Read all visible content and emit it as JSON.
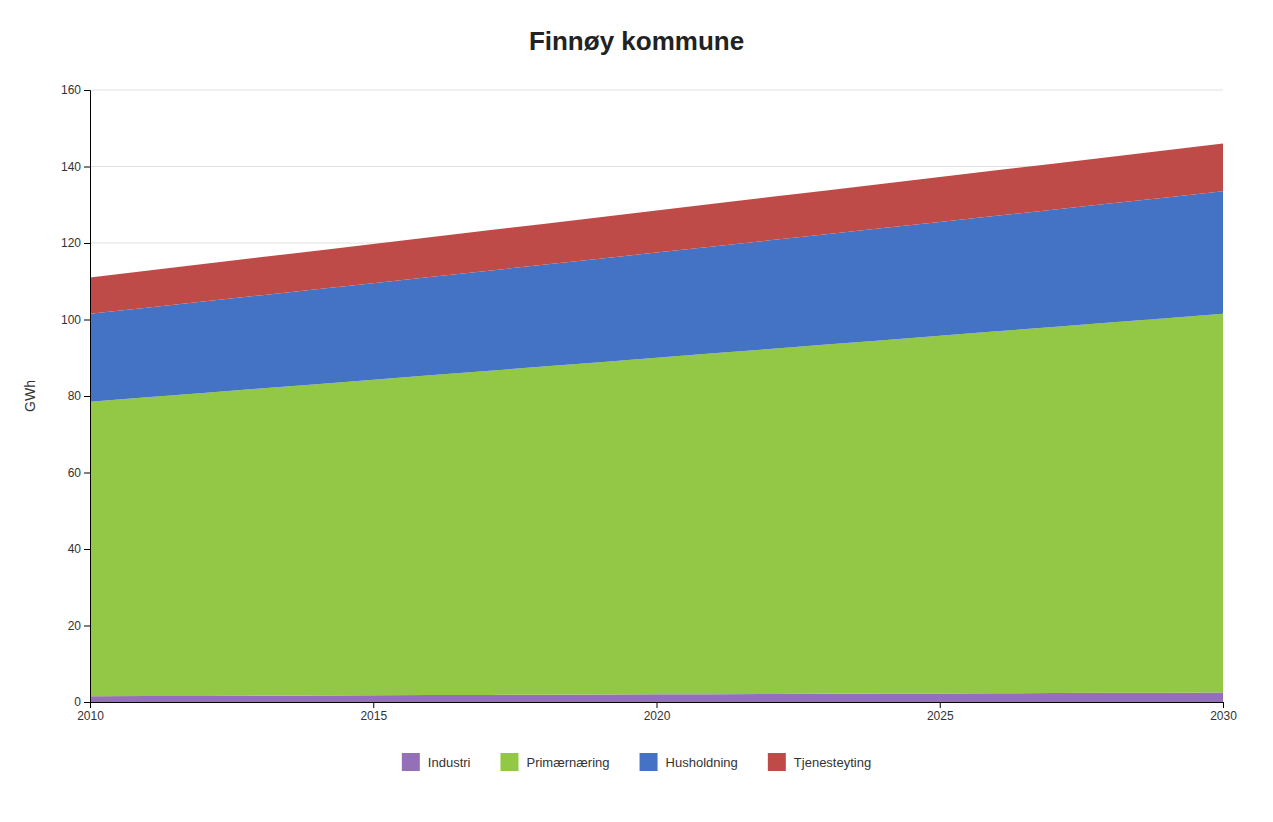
{
  "chart_data": {
    "type": "area",
    "stacked": true,
    "title": "Finnøy kommune",
    "y_label": "GWh",
    "x": [
      2010,
      2011,
      2012,
      2013,
      2014,
      2015,
      2016,
      2017,
      2018,
      2019,
      2020,
      2021,
      2022,
      2023,
      2024,
      2025,
      2026,
      2027,
      2028,
      2029,
      2030
    ],
    "series": [
      {
        "name": "Industri",
        "color": "#9370b8",
        "values": [
          1.5,
          1.55,
          1.6,
          1.65,
          1.7,
          1.75,
          1.8,
          1.85,
          1.9,
          1.95,
          2.0,
          2.05,
          2.1,
          2.15,
          2.2,
          2.25,
          2.3,
          2.35,
          2.4,
          2.45,
          2.5
        ]
      },
      {
        "name": "Primærnæring",
        "color": "#92c846",
        "values": [
          77,
          78.1,
          79.2,
          80.3,
          81.4,
          82.5,
          83.6,
          84.7,
          85.8,
          86.9,
          88.0,
          89.1,
          90.2,
          91.3,
          92.4,
          93.5,
          94.6,
          95.7,
          96.8,
          97.9,
          99.0
        ]
      },
      {
        "name": "Husholdning",
        "color": "#4472c4",
        "values": [
          23,
          23.45,
          23.9,
          24.35,
          24.8,
          25.25,
          25.7,
          26.15,
          26.6,
          27.05,
          27.5,
          27.95,
          28.4,
          28.85,
          29.3,
          29.75,
          30.2,
          30.65,
          31.1,
          31.55,
          32.0
        ]
      },
      {
        "name": "Tjenesteyting",
        "color": "#be4b48",
        "values": [
          9.5,
          9.65,
          9.8,
          9.95,
          10.1,
          10.25,
          10.4,
          10.55,
          10.7,
          10.85,
          11.0,
          11.15,
          11.3,
          11.45,
          11.6,
          11.75,
          11.9,
          12.05,
          12.2,
          12.35,
          12.5
        ]
      }
    ],
    "xlim": [
      2010,
      2030
    ],
    "xticks": [
      2010,
      2015,
      2020,
      2025,
      2030
    ],
    "ylim": [
      0,
      160
    ],
    "yticks": [
      0,
      20,
      40,
      60,
      80,
      100,
      120,
      140,
      160
    ],
    "grid": true,
    "legend": "bottom"
  }
}
